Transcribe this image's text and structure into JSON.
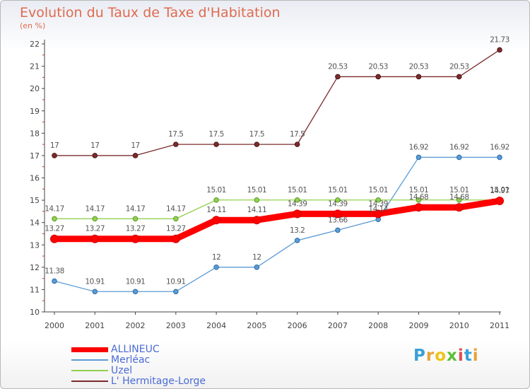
{
  "chart_data": {
    "type": "line",
    "title": "Evolution du Taux de Taxe d'Habitation",
    "subtitle": "(en %)",
    "categories": [
      "2000",
      "2001",
      "2002",
      "2003",
      "2004",
      "2005",
      "2006",
      "2007",
      "2008",
      "2009",
      "2010",
      "2011"
    ],
    "ylim": [
      10,
      22
    ],
    "yticks": [
      10,
      11,
      12,
      13,
      14,
      15,
      16,
      17,
      18,
      19,
      20,
      21,
      22
    ],
    "grid": false,
    "legend_position": "bottom-left",
    "series": [
      {
        "name": "ALLINEUC",
        "color": "#ff0000",
        "values": [
          13.27,
          13.27,
          13.27,
          13.27,
          14.11,
          14.11,
          14.39,
          14.39,
          14.39,
          14.68,
          14.68,
          14.97
        ],
        "labels": [
          "13.27",
          "13.27",
          "13.27",
          "13.27",
          "14.11",
          "14.11",
          "14.39",
          "14.39",
          "14.39",
          "14.68",
          "14.68",
          "14.97"
        ]
      },
      {
        "name": "Merléac",
        "color": "#5b9bd5",
        "values": [
          11.38,
          10.91,
          10.91,
          10.91,
          12,
          12,
          13.2,
          13.66,
          14.14,
          16.92,
          16.92,
          16.92
        ],
        "labels": [
          "11.38",
          "10.91",
          "10.91",
          "10.91",
          "12",
          "12",
          "13.2",
          "13.66",
          "14.14",
          "16.92",
          "16.92",
          "16.92"
        ]
      },
      {
        "name": "Uzel",
        "color": "#92d050",
        "values": [
          14.17,
          14.17,
          14.17,
          14.17,
          15.01,
          15.01,
          15.01,
          15.01,
          15.01,
          15.01,
          15.01,
          15.01
        ],
        "labels": [
          "14.17",
          "14.17",
          "14.17",
          "14.17",
          "15.01",
          "15.01",
          "15.01",
          "15.01",
          "15.01",
          "15.01",
          "15.01",
          "15.01"
        ]
      },
      {
        "name": "L' Hermitage-Lorge",
        "color": "#7b2c2c",
        "values": [
          17,
          17,
          17,
          17.5,
          17.5,
          17.5,
          17.5,
          20.53,
          20.53,
          20.53,
          20.53,
          21.73
        ],
        "labels": [
          "17",
          "17",
          "17",
          "17.5",
          "17.5",
          "17.5",
          "17.5",
          "20.53",
          "20.53",
          "20.53",
          "20.53",
          "21.73"
        ]
      }
    ]
  },
  "logo": {
    "letters": [
      "P",
      "r",
      "o",
      "x",
      "i",
      "t",
      "i"
    ],
    "colors": [
      "#3aa0d8",
      "#e8a23a",
      "#f0c419",
      "#5bbf3a",
      "#e24b4b",
      "#3aa0d8",
      "#e8a23a"
    ]
  }
}
